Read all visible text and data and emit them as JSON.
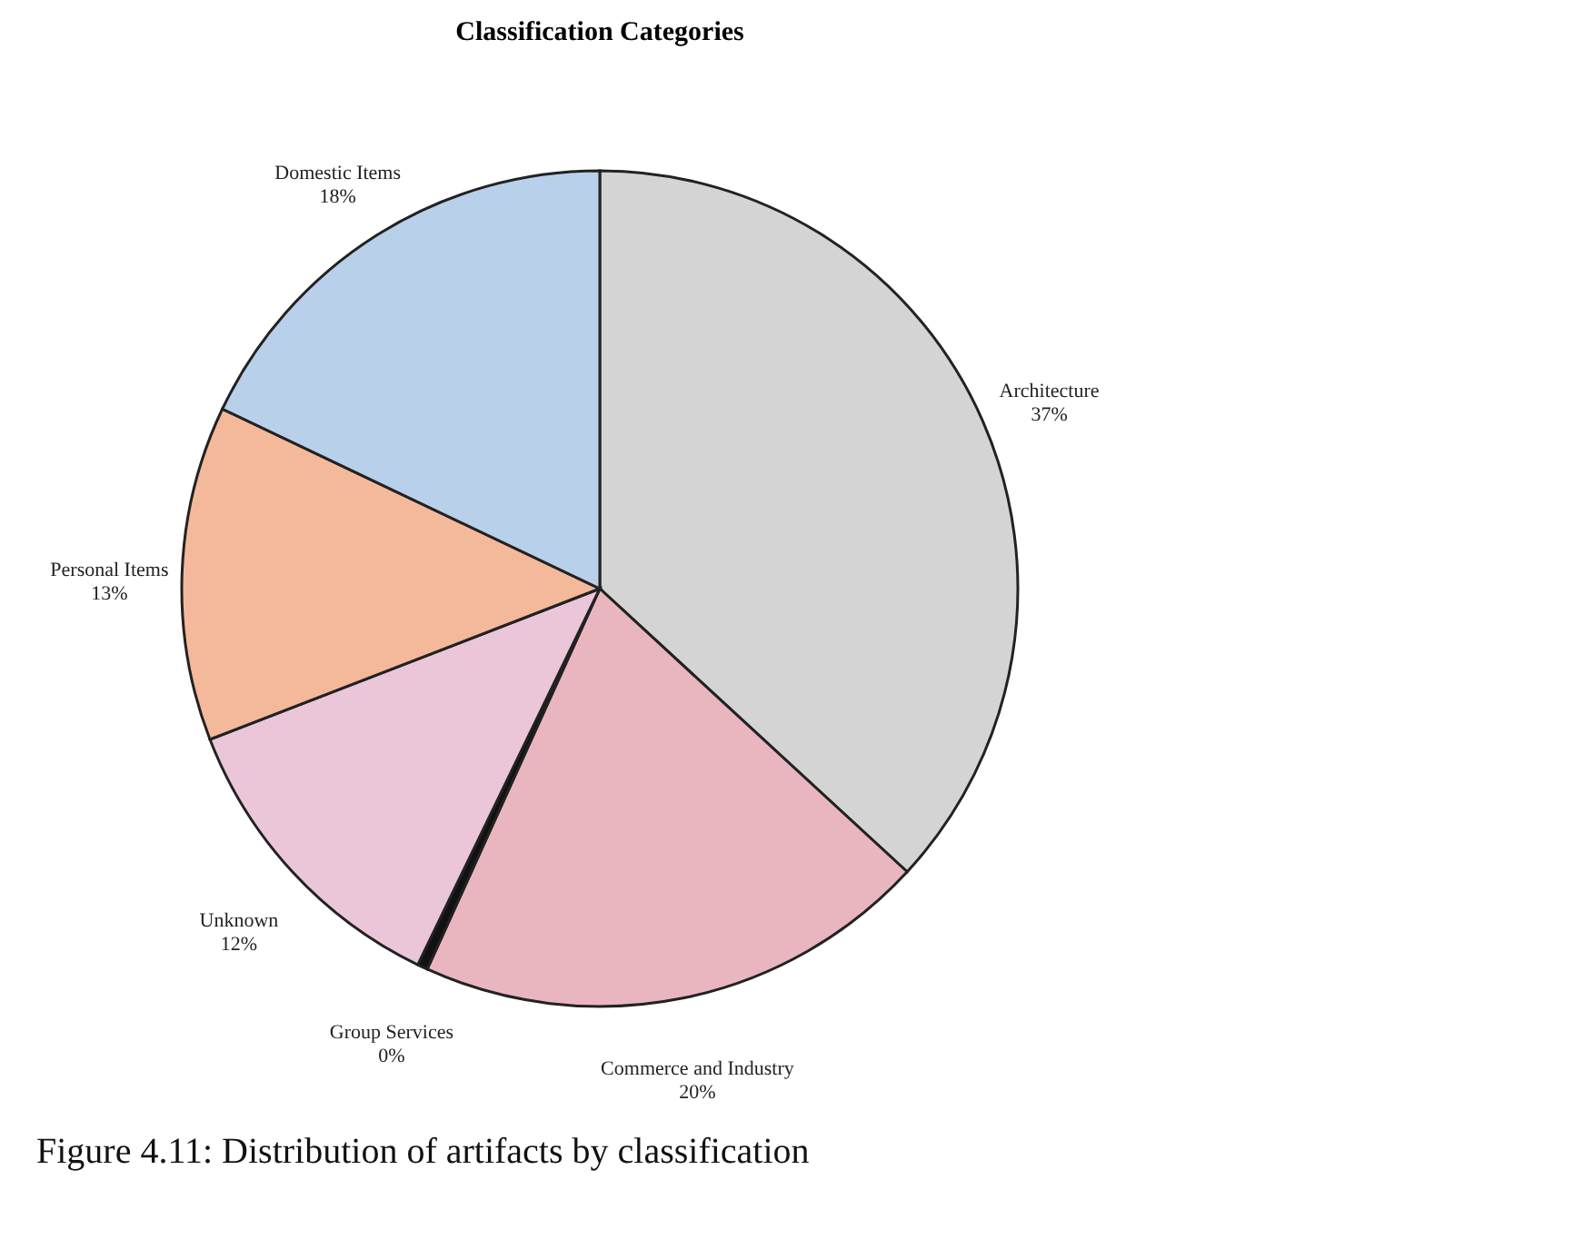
{
  "chart_data": {
    "type": "pie",
    "title": "Classification Categories",
    "categories": [
      "Architecture",
      "Commerce and Industry",
      "Group Services",
      "Unknown",
      "Personal Items",
      "Domestic Items"
    ],
    "values": [
      37,
      20,
      0.4,
      12,
      13,
      18
    ],
    "value_labels": [
      "37%",
      "20%",
      "0%",
      "12%",
      "13%",
      "18%"
    ],
    "colors": [
      "#d4d4d4",
      "#e9b6c0",
      "#111111",
      "#ebc6d8",
      "#f4b99a",
      "#b9d0ea"
    ],
    "legend": false,
    "annotations": [
      "Figure 4.11: Distribution of artifacts by classification"
    ]
  }
}
